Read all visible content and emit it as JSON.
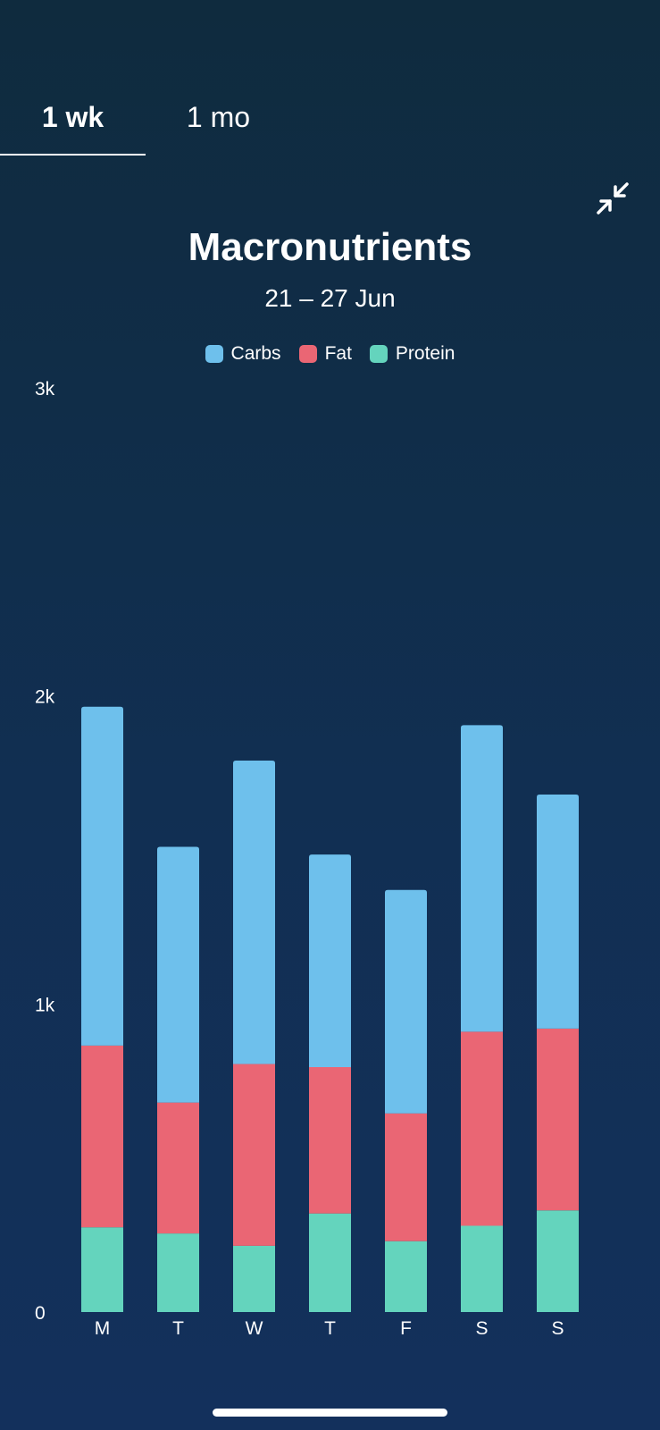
{
  "tabs": [
    {
      "label": "1 wk",
      "active": true
    },
    {
      "label": "1 mo",
      "active": false
    }
  ],
  "icons": {
    "collapse": "collapse-arrows-icon"
  },
  "colors": {
    "carbs": "#6ec0ec",
    "fat": "#ea6674",
    "protein": "#64d4bd"
  },
  "chart_data": {
    "type": "bar",
    "stacked": true,
    "title": "Macronutrients",
    "subtitle": "21 – 27 Jun",
    "categories": [
      "M",
      "T",
      "W",
      "T",
      "F",
      "S",
      "S"
    ],
    "series": [
      {
        "name": "Protein",
        "values": [
          275,
          255,
          215,
          320,
          230,
          280,
          330
        ]
      },
      {
        "name": "Fat",
        "values": [
          590,
          425,
          590,
          475,
          415,
          630,
          590
        ]
      },
      {
        "name": "Carbs",
        "values": [
          1100,
          830,
          985,
          690,
          725,
          995,
          760
        ]
      }
    ],
    "legend": [
      "Carbs",
      "Fat",
      "Protein"
    ],
    "yticks": [
      {
        "value": 0,
        "label": "0"
      },
      {
        "value": 1000,
        "label": "1k"
      },
      {
        "value": 2000,
        "label": "2k"
      },
      {
        "value": 3000,
        "label": "3k"
      }
    ],
    "ylim": [
      0,
      3000
    ],
    "grid": false,
    "legend_position": "top-center"
  }
}
